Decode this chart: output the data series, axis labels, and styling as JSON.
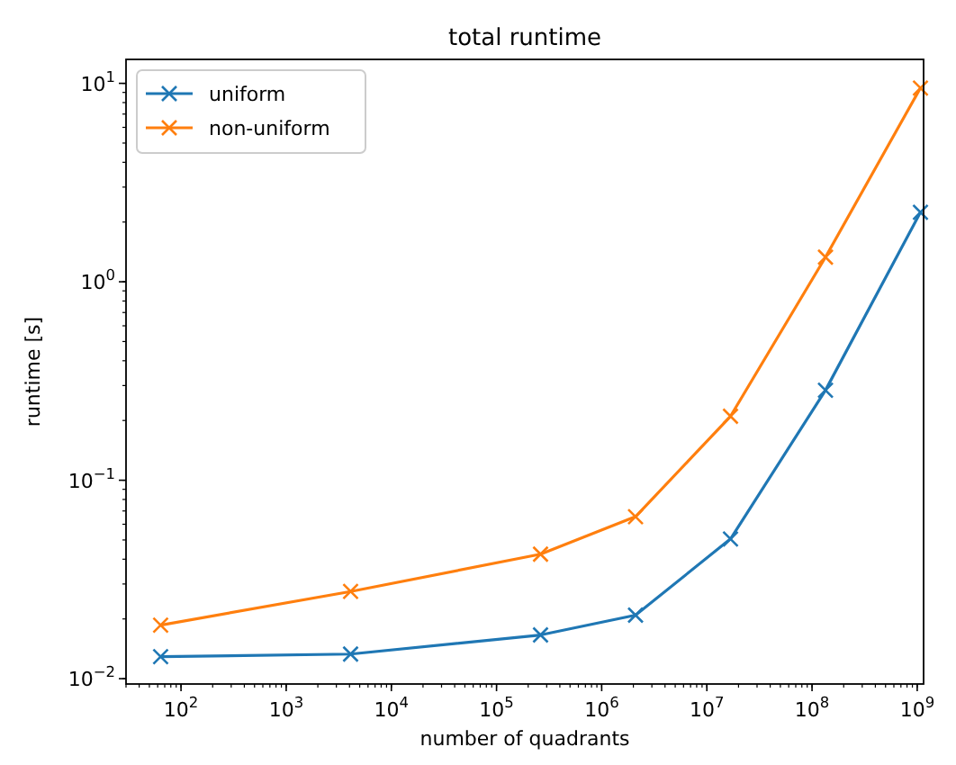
{
  "chart_data": {
    "type": "line",
    "title": "total runtime",
    "xlabel": "number of quadrants",
    "ylabel": "runtime [s]",
    "log": "xy",
    "marker": "cross",
    "line_style": "solid",
    "legend": "top left",
    "grid": false,
    "x": [
      64,
      4096,
      262144,
      2097152,
      16777216,
      134217728,
      1073741824
    ],
    "xlim": [
      30,
      1150000000
    ],
    "ylim": [
      0.0094,
      13.2
    ],
    "xticks": [
      {
        "value": 100,
        "label": "10$^{2}$"
      },
      {
        "value": 1000,
        "label": "10$^{3}$"
      },
      {
        "value": 10000,
        "label": "10$^{4}$"
      },
      {
        "value": 100000,
        "label": "10$^{5}$"
      },
      {
        "value": 1000000,
        "label": "10$^{6}$"
      },
      {
        "value": 10000000,
        "label": "10$^{7}$"
      },
      {
        "value": 100000000,
        "label": "10$^{8}$"
      },
      {
        "value": 1000000000,
        "label": "10$^{9}$"
      }
    ],
    "yticks": [
      {
        "value": 0.01,
        "label": "10$^{−2}$"
      },
      {
        "value": 0.1,
        "label": "10$^{−1}$"
      },
      {
        "value": 1,
        "label": "10$^{0}$"
      },
      {
        "value": 10,
        "label": "10$^{1}$"
      }
    ],
    "series": [
      {
        "name": "uniform",
        "color": "#1f77b4",
        "values": [
          0.0129,
          0.0133,
          0.0166,
          0.0209,
          0.0506,
          0.284,
          2.24
        ]
      },
      {
        "name": "non-uniform",
        "color": "#ff7f0e",
        "values": [
          0.0186,
          0.0275,
          0.0424,
          0.0655,
          0.21,
          1.33,
          9.47
        ]
      }
    ]
  }
}
